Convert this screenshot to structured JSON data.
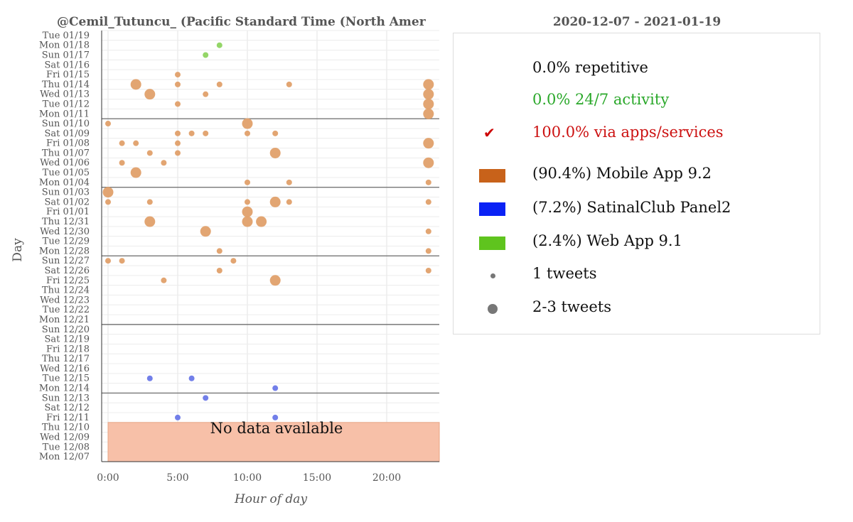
{
  "chart_data": {
    "type": "scatter",
    "title_left": "@Cemil_Tutuncu_ (Pacific Standard Time (North Amer",
    "title_right": "2020-12-07 - 2021-01-19",
    "xlabel": "Hour of day",
    "ylabel": "Day",
    "x_ticks": [
      "0:00",
      "5:00",
      "10:00",
      "15:00",
      "20:00"
    ],
    "xlim": [
      0,
      23.5
    ],
    "days": [
      "Mon 12/07",
      "Tue 12/08",
      "Wed 12/09",
      "Thu 12/10",
      "Fri 12/11",
      "Sat 12/12",
      "Sun 12/13",
      "Mon 12/14",
      "Tue 12/15",
      "Wed 12/16",
      "Thu 12/17",
      "Fri 12/18",
      "Sat 12/19",
      "Sun 12/20",
      "Mon 12/21",
      "Tue 12/22",
      "Wed 12/23",
      "Thu 12/24",
      "Fri 12/25",
      "Sat 12/26",
      "Sun 12/27",
      "Mon 12/28",
      "Tue 12/29",
      "Wed 12/30",
      "Thu 12/31",
      "Fri 01/01",
      "Sat 01/02",
      "Sun 01/03",
      "Mon 01/04",
      "Tue 01/05",
      "Wed 01/06",
      "Thu 01/07",
      "Fri 01/08",
      "Sat 01/09",
      "Sun 01/10",
      "Mon 01/11",
      "Tue 01/12",
      "Wed 01/13",
      "Thu 01/14",
      "Fri 01/15",
      "Sat 01/16",
      "Sun 01/17",
      "Mon 01/18",
      "Tue 01/19"
    ],
    "week_separators_after": [
      "Sun 12/13",
      "Sun 12/20",
      "Sun 12/27",
      "Sun 01/03",
      "Sun 01/10"
    ],
    "no_data": {
      "label": "No data available",
      "from_day": "Mon 12/07",
      "to_day": "Thu 12/10"
    },
    "series": [
      {
        "name": "Mobile App 9.2",
        "color": "#e0a06a",
        "points": [
          {
            "day": "Thu 01/14",
            "hour": 2,
            "size": 2
          },
          {
            "day": "Thu 01/14",
            "hour": 5,
            "size": 1
          },
          {
            "day": "Thu 01/14",
            "hour": 8,
            "size": 1
          },
          {
            "day": "Thu 01/14",
            "hour": 13,
            "size": 1
          },
          {
            "day": "Thu 01/14",
            "hour": 23,
            "size": 2
          },
          {
            "day": "Fri 01/15",
            "hour": 5,
            "size": 1
          },
          {
            "day": "Wed 01/13",
            "hour": 3,
            "size": 2
          },
          {
            "day": "Wed 01/13",
            "hour": 7,
            "size": 1
          },
          {
            "day": "Wed 01/13",
            "hour": 23,
            "size": 2
          },
          {
            "day": "Tue 01/12",
            "hour": 5,
            "size": 1
          },
          {
            "day": "Tue 01/12",
            "hour": 23,
            "size": 2
          },
          {
            "day": "Mon 01/11",
            "hour": 23,
            "size": 2
          },
          {
            "day": "Sun 01/10",
            "hour": 0,
            "size": 1
          },
          {
            "day": "Sun 01/10",
            "hour": 10,
            "size": 2
          },
          {
            "day": "Sat 01/09",
            "hour": 5,
            "size": 1
          },
          {
            "day": "Sat 01/09",
            "hour": 6,
            "size": 1
          },
          {
            "day": "Sat 01/09",
            "hour": 7,
            "size": 1
          },
          {
            "day": "Sat 01/09",
            "hour": 10,
            "size": 1
          },
          {
            "day": "Sat 01/09",
            "hour": 12,
            "size": 1
          },
          {
            "day": "Fri 01/08",
            "hour": 1,
            "size": 1
          },
          {
            "day": "Fri 01/08",
            "hour": 2,
            "size": 1
          },
          {
            "day": "Fri 01/08",
            "hour": 5,
            "size": 1
          },
          {
            "day": "Fri 01/08",
            "hour": 23,
            "size": 2
          },
          {
            "day": "Thu 01/07",
            "hour": 3,
            "size": 1
          },
          {
            "day": "Thu 01/07",
            "hour": 5,
            "size": 1
          },
          {
            "day": "Thu 01/07",
            "hour": 12,
            "size": 2
          },
          {
            "day": "Wed 01/06",
            "hour": 1,
            "size": 1
          },
          {
            "day": "Wed 01/06",
            "hour": 4,
            "size": 1
          },
          {
            "day": "Wed 01/06",
            "hour": 23,
            "size": 2
          },
          {
            "day": "Tue 01/05",
            "hour": 2,
            "size": 2
          },
          {
            "day": "Mon 01/04",
            "hour": 10,
            "size": 1
          },
          {
            "day": "Mon 01/04",
            "hour": 13,
            "size": 1
          },
          {
            "day": "Mon 01/04",
            "hour": 23,
            "size": 1
          },
          {
            "day": "Sun 01/03",
            "hour": 0,
            "size": 2
          },
          {
            "day": "Sat 01/02",
            "hour": 0,
            "size": 1
          },
          {
            "day": "Sat 01/02",
            "hour": 3,
            "size": 1
          },
          {
            "day": "Sat 01/02",
            "hour": 10,
            "size": 1
          },
          {
            "day": "Sat 01/02",
            "hour": 12,
            "size": 2
          },
          {
            "day": "Sat 01/02",
            "hour": 13,
            "size": 1
          },
          {
            "day": "Sat 01/02",
            "hour": 23,
            "size": 1
          },
          {
            "day": "Fri 01/01",
            "hour": 10,
            "size": 2
          },
          {
            "day": "Thu 12/31",
            "hour": 3,
            "size": 2
          },
          {
            "day": "Thu 12/31",
            "hour": 10,
            "size": 2
          },
          {
            "day": "Thu 12/31",
            "hour": 11,
            "size": 2
          },
          {
            "day": "Wed 12/30",
            "hour": 7,
            "size": 2
          },
          {
            "day": "Wed 12/30",
            "hour": 23,
            "size": 1
          },
          {
            "day": "Mon 12/28",
            "hour": 8,
            "size": 1
          },
          {
            "day": "Mon 12/28",
            "hour": 23,
            "size": 1
          },
          {
            "day": "Sun 12/27",
            "hour": 0,
            "size": 1
          },
          {
            "day": "Sun 12/27",
            "hour": 1,
            "size": 1
          },
          {
            "day": "Sun 12/27",
            "hour": 9,
            "size": 1
          },
          {
            "day": "Sat 12/26",
            "hour": 8,
            "size": 1
          },
          {
            "day": "Sat 12/26",
            "hour": 23,
            "size": 1
          },
          {
            "day": "Fri 12/25",
            "hour": 4,
            "size": 1
          },
          {
            "day": "Fri 12/25",
            "hour": 12,
            "size": 2
          }
        ]
      },
      {
        "name": "SatinalClub Panel2",
        "color": "#6a78e8",
        "points": [
          {
            "day": "Tue 12/15",
            "hour": 3,
            "size": 1
          },
          {
            "day": "Tue 12/15",
            "hour": 6,
            "size": 1
          },
          {
            "day": "Mon 12/14",
            "hour": 12,
            "size": 1
          },
          {
            "day": "Sun 12/13",
            "hour": 7,
            "size": 1
          },
          {
            "day": "Fri 12/11",
            "hour": 5,
            "size": 1
          },
          {
            "day": "Fri 12/11",
            "hour": 12,
            "size": 1
          }
        ]
      },
      {
        "name": "Web App 9.1",
        "color": "#8ed460",
        "points": [
          {
            "day": "Mon 01/18",
            "hour": 8,
            "size": 1
          },
          {
            "day": "Sun 01/17",
            "hour": 7,
            "size": 1
          }
        ]
      }
    ]
  },
  "legend": {
    "repetitive": "0.0% repetitive",
    "activity": "0.0% 24/7 activity",
    "apps": "100.0% via apps/services",
    "checkmark": "✔",
    "sources": [
      {
        "label": "(90.4%) Mobile App 9.2",
        "color": "#c8621a"
      },
      {
        "label": "(7.2%) SatinalClub Panel2",
        "color": "#0a22f5"
      },
      {
        "label": "(2.4%) Web App 9.1",
        "color": "#5fc41e"
      }
    ],
    "size_small": "1 tweets",
    "size_large": "2-3 tweets",
    "colors": {
      "repetitive": "#111111",
      "activity": "#2aa82a",
      "apps": "#cc1111"
    }
  }
}
